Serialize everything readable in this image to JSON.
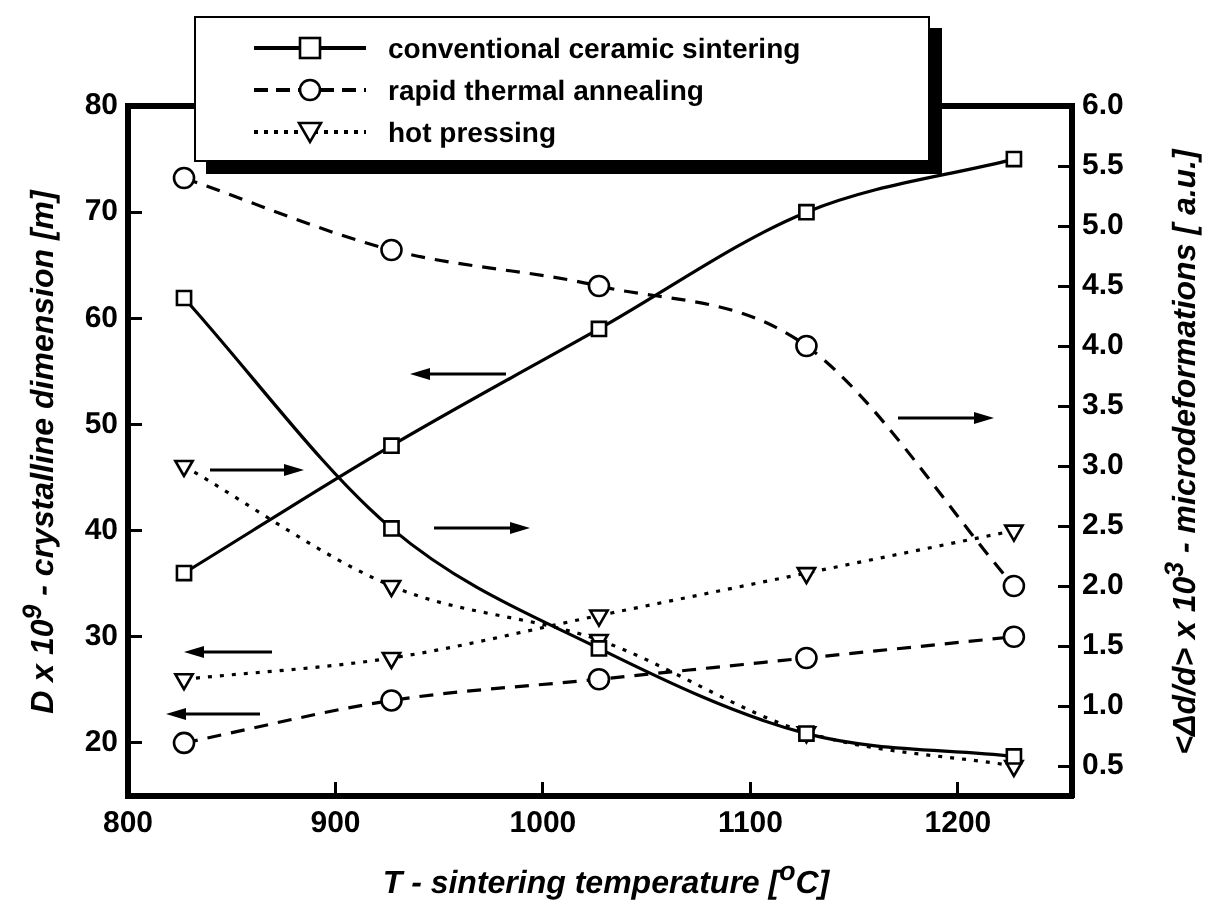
{
  "chart_data": {
    "type": "line",
    "xlabel": "T - sintering temperature   [$^{o}$C]",
    "ylabel": "D x 10$^{9}$ - crystalline dimension  [m]",
    "y2label": "<Δd/d> x 10$^{3}$ - microdeformations   [ a.u.]",
    "x": [
      827,
      927,
      1027,
      1127,
      1227
    ],
    "xlim": [
      800,
      1255
    ],
    "xticks": [
      800,
      900,
      1000,
      1100,
      1200
    ],
    "ylim": [
      15,
      80
    ],
    "yticks": [
      20,
      30,
      40,
      50,
      60,
      70,
      80
    ],
    "y2lim": [
      0.25,
      6.0
    ],
    "y2ticks": [
      {
        "value": 0.5,
        "label": "0.5"
      },
      {
        "value": 1,
        "label": "1.0"
      },
      {
        "value": 1.5,
        "label": "1.5"
      },
      {
        "value": 2,
        "label": "2.0"
      },
      {
        "value": 2.5,
        "label": "2.5"
      },
      {
        "value": 3,
        "label": "3.0"
      },
      {
        "value": 3.5,
        "label": "3.5"
      },
      {
        "value": 4,
        "label": "4.0"
      },
      {
        "value": 4.5,
        "label": "4.5"
      },
      {
        "value": 5,
        "label": "5.0"
      },
      {
        "value": 5.5,
        "label": "5.5"
      },
      {
        "value": 6,
        "label": "6.0"
      }
    ],
    "grid": false,
    "legend": "top",
    "series": [
      {
        "name": "conventional ceramic sintering",
        "color": "#000000",
        "marker": "square",
        "line_style": "solid",
        "values": [
          36,
          48,
          59,
          70,
          75
        ]
      },
      {
        "name": "rapid thermal annealing",
        "color": "#000000",
        "marker": "circle",
        "line_style": "dashed",
        "values": [
          20,
          24,
          26,
          28,
          30
        ]
      },
      {
        "name": "hot pressing",
        "color": "#000000",
        "marker": "triangle",
        "line_style": "dotted",
        "values": [
          26,
          28,
          32,
          36,
          40
        ]
      },
      {
        "color": "#000000",
        "marker": "square",
        "line_style": "solid",
        "axis": "y2",
        "values": [
          4.4,
          2.48,
          1.48,
          0.77,
          0.58
        ]
      },
      {
        "color": "#000000",
        "marker": "circle",
        "line_style": "dashed",
        "axis": "y2",
        "values": [
          5.4,
          4.8,
          4.5,
          4.0,
          2.0
        ]
      },
      {
        "color": "#000000",
        "marker": "triangle",
        "line_style": "dotted",
        "axis": "y2",
        "values": [
          3.0,
          2.0,
          1.55,
          0.78,
          0.5
        ]
      }
    ]
  }
}
